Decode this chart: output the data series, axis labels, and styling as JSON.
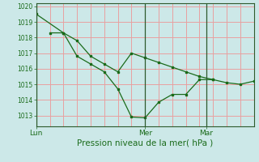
{
  "xlabel": "Pression niveau de la mer( hPa )",
  "bg_color": "#cce8e8",
  "grid_color_h": "#e8a0a0",
  "grid_color_v": "#e8a0a0",
  "line_color": "#1a6b1a",
  "marker_color": "#1a6b1a",
  "ylim": [
    1012.3,
    1020.2
  ],
  "yticks": [
    1013,
    1014,
    1015,
    1016,
    1017,
    1018,
    1019,
    1020
  ],
  "series1_x": [
    0,
    2,
    3,
    4,
    5,
    6,
    7,
    8,
    9,
    10,
    11,
    12,
    13,
    14,
    15,
    16
  ],
  "series1_y": [
    1019.5,
    1018.3,
    1017.8,
    1016.8,
    1016.3,
    1015.8,
    1017.0,
    1016.7,
    1016.4,
    1016.1,
    1015.8,
    1015.5,
    1015.3,
    1015.1,
    1015.0,
    1015.2
  ],
  "series2_x": [
    1,
    2,
    3,
    4,
    5,
    6,
    7,
    8,
    9,
    10,
    11,
    12,
    13
  ],
  "series2_y": [
    1018.3,
    1018.3,
    1016.8,
    1016.3,
    1015.8,
    1014.7,
    1012.9,
    1012.85,
    1013.85,
    1014.35,
    1014.35,
    1015.3,
    1015.3
  ],
  "vline_positions": [
    0,
    8,
    12.5
  ],
  "xtick_positions": [
    0,
    8,
    12.5
  ],
  "xtick_labels": [
    "Lun",
    "Mer",
    "Mar"
  ],
  "xlim": [
    0,
    16
  ],
  "xlabel_fontsize": 7.5
}
